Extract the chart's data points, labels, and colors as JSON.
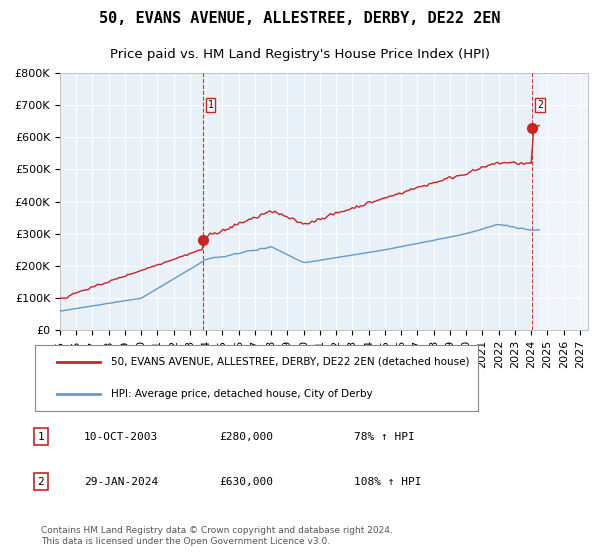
{
  "title": "50, EVANS AVENUE, ALLESTREE, DERBY, DE22 2EN",
  "subtitle": "Price paid vs. HM Land Registry's House Price Index (HPI)",
  "legend_line1": "50, EVANS AVENUE, ALLESTREE, DERBY, DE22 2EN (detached house)",
  "legend_line2": "HPI: Average price, detached house, City of Derby",
  "annotation1_label": "1",
  "annotation1_date": "10-OCT-2003",
  "annotation1_price": "£280,000",
  "annotation1_hpi": "78% ↑ HPI",
  "annotation2_label": "2",
  "annotation2_date": "29-JAN-2024",
  "annotation2_price": "£630,000",
  "annotation2_hpi": "108% ↑ HPI",
  "footer": "Contains HM Land Registry data © Crown copyright and database right 2024.\nThis data is licensed under the Open Government Licence v3.0.",
  "hpi_color": "#6699cc",
  "price_color": "#cc2222",
  "marker_color": "#cc2222",
  "vline_color": "#cc2222",
  "bg_color": "#ddeeff",
  "plot_bg": "#e8f0f8",
  "grid_color": "#ffffff",
  "ylim": [
    0,
    800000
  ],
  "yticks": [
    0,
    100000,
    200000,
    300000,
    400000,
    500000,
    600000,
    700000,
    800000
  ],
  "xlim_start": 1995.0,
  "xlim_end": 2027.5,
  "xticks": [
    1995,
    1996,
    1997,
    1998,
    1999,
    2000,
    2001,
    2002,
    2003,
    2004,
    2005,
    2006,
    2007,
    2008,
    2009,
    2010,
    2011,
    2012,
    2013,
    2014,
    2015,
    2016,
    2017,
    2018,
    2019,
    2020,
    2021,
    2022,
    2023,
    2024,
    2025,
    2026,
    2027
  ],
  "sale1_x": 2003.78,
  "sale1_y": 280000,
  "sale2_x": 2024.08,
  "sale2_y": 630000,
  "hatch_start": 2024.5,
  "title_fontsize": 11,
  "subtitle_fontsize": 9.5,
  "tick_fontsize": 8,
  "label_fontsize": 8
}
